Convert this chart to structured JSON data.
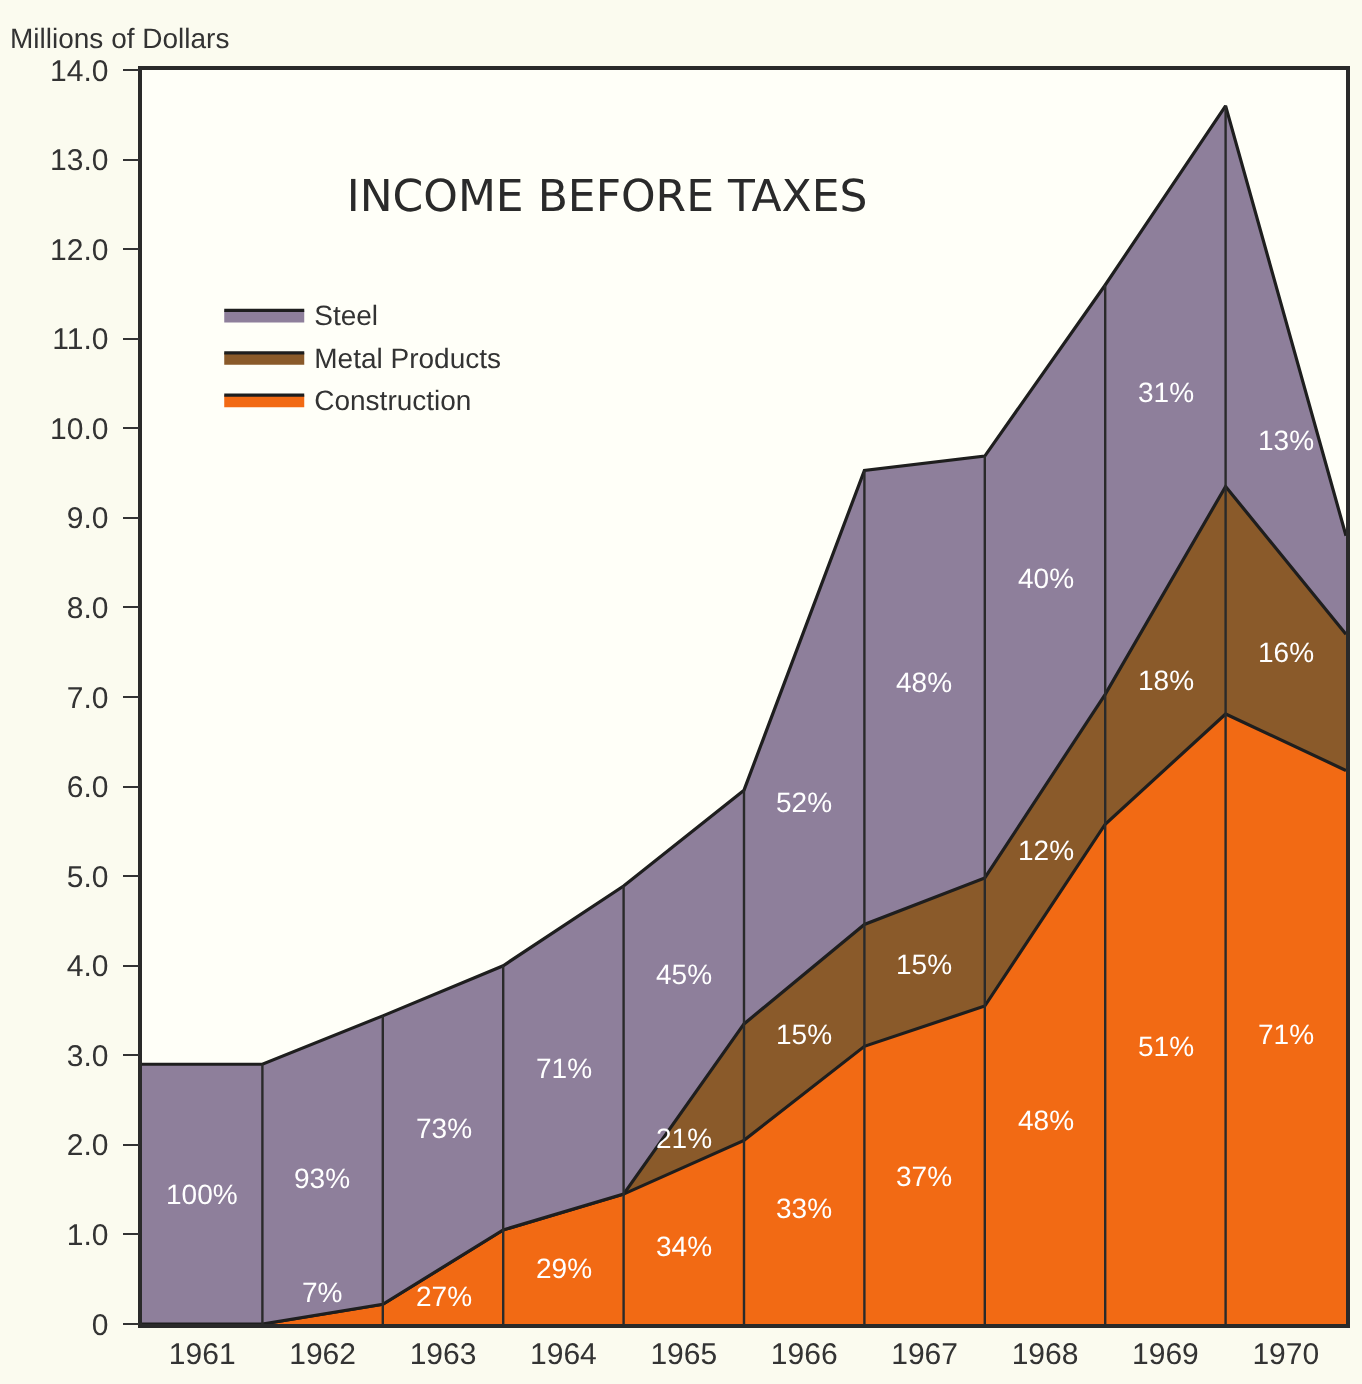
{
  "chart_data": {
    "type": "area",
    "stacked": true,
    "title": "INCOME BEFORE TAXES",
    "ylabel": "Millions of Dollars",
    "x": [
      1960.5,
      1961.5,
      1962.5,
      1963.5,
      1964.5,
      1965.5,
      1966.5,
      1967.5,
      1968.5,
      1969.5,
      1970.5
    ],
    "series": [
      {
        "name": "Construction",
        "color": "#f26a14",
        "values": [
          0,
          0,
          0.22,
          1.05,
          1.45,
          2.05,
          3.1,
          3.55,
          5.58,
          6.81,
          6.18
        ]
      },
      {
        "name": "Metal Products",
        "color": "#8a5a2a",
        "values": [
          0,
          0,
          0,
          0,
          0,
          1.3,
          1.36,
          1.43,
          1.45,
          2.54,
          1.52
        ]
      },
      {
        "name": "Steel",
        "color": "#8e7f9b",
        "values": [
          2.9,
          2.9,
          3.22,
          2.95,
          3.44,
          2.61,
          5.07,
          4.71,
          4.57,
          4.25,
          1.1
        ]
      }
    ],
    "xlim": [
      1960.5,
      1970.5
    ],
    "xticks": [
      1961,
      1962,
      1963,
      1964,
      1965,
      1966,
      1967,
      1968,
      1969,
      1970
    ],
    "ylim": [
      0,
      14
    ],
    "yticks": [
      0,
      {
        "value": 1,
        "label": "1.0"
      },
      {
        "value": 2,
        "label": "2.0"
      },
      {
        "value": 3,
        "label": "3.0"
      },
      {
        "value": 4,
        "label": "4.0"
      },
      {
        "value": 5,
        "label": "5.0"
      },
      {
        "value": 6,
        "label": "6.0"
      },
      {
        "value": 7,
        "label": "7.0"
      },
      {
        "value": 8,
        "label": "8.0"
      },
      {
        "value": 9,
        "label": "9.0"
      },
      {
        "value": 10,
        "label": "10.0"
      },
      {
        "value": 11,
        "label": "11.0"
      },
      {
        "value": 12,
        "label": "12.0"
      },
      {
        "value": 13,
        "label": "13.0"
      },
      {
        "value": 14,
        "label": "14.0"
      }
    ],
    "annotations": [
      "100%",
      "93%",
      "7%",
      "73%",
      "27%",
      "71%",
      "29%",
      "45%",
      "21%",
      "34%",
      "52%",
      "15%",
      "33%",
      "48%",
      "15%",
      "37%",
      "40%",
      "12%",
      "48%",
      "31%",
      "18%",
      "51%",
      "13%",
      "16%",
      "71%"
    ],
    "ref_lines": [
      {
        "axis": "x",
        "value": 1961.5,
        "color": "#2a2a2a"
      },
      {
        "axis": "x",
        "value": 1962.5,
        "color": "#2a2a2a"
      },
      {
        "axis": "x",
        "value": 1963.5,
        "color": "#2a2a2a"
      },
      {
        "axis": "x",
        "value": 1964.5,
        "color": "#2a2a2a"
      },
      {
        "axis": "x",
        "value": 1965.5,
        "color": "#2a2a2a"
      },
      {
        "axis": "x",
        "value": 1966.5,
        "color": "#2a2a2a"
      },
      {
        "axis": "x",
        "value": 1967.5,
        "color": "#2a2a2a"
      },
      {
        "axis": "x",
        "value": 1968.5,
        "color": "#2a2a2a"
      },
      {
        "axis": "x",
        "value": 1969.5,
        "color": "#2a2a2a"
      }
    ],
    "legend": "top left",
    "grid": false
  }
}
